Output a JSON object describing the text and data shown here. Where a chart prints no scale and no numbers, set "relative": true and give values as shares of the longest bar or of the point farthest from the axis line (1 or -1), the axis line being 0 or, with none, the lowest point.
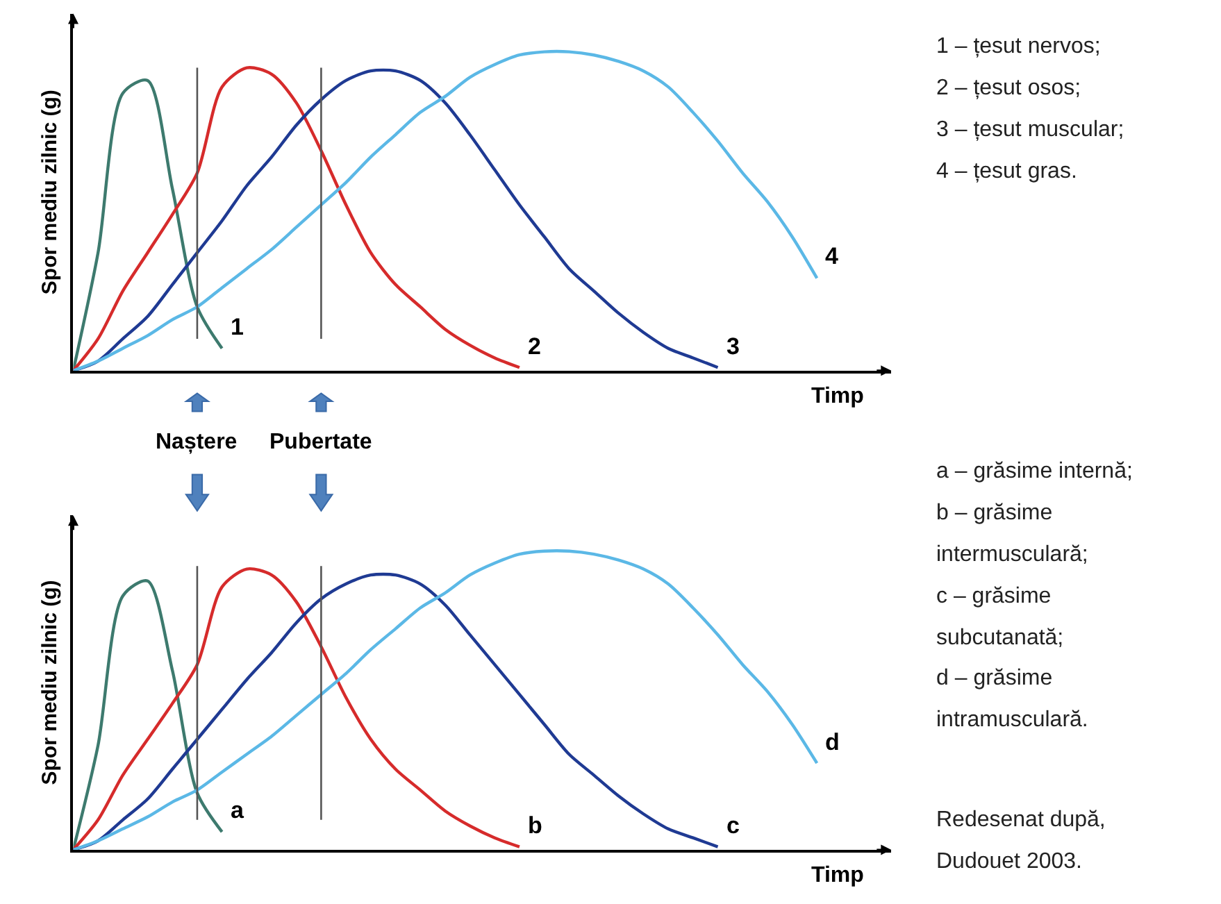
{
  "chart_data": [
    {
      "type": "line",
      "relative": true,
      "ylabel": "Spor mediu zilnic (g)",
      "xlabel": "Timp",
      "legend": false,
      "marker": "none",
      "line_style": "solid",
      "categories": [
        null,
        null,
        null,
        null,
        null,
        null,
        null,
        null,
        null,
        null,
        null,
        null,
        null,
        null,
        null,
        null,
        null,
        null,
        null,
        null,
        null,
        null,
        null,
        null,
        null,
        null,
        null,
        null,
        null,
        null,
        null
      ],
      "series": [
        {
          "name": "1",
          "color": "#3d7a6e",
          "values": [
            0,
            0.37,
            0.87,
            0.91,
            0.57,
            0.2,
            0.07,
            null,
            null,
            null,
            null,
            null,
            null,
            null,
            null,
            null,
            null,
            null,
            null,
            null,
            null,
            null,
            null,
            null,
            null,
            null,
            null,
            null,
            null,
            null,
            null
          ]
        },
        {
          "name": "2",
          "color": "#d62b2b",
          "values": [
            0,
            0.1,
            0.25,
            0.37,
            0.49,
            0.62,
            0.89,
            0.95,
            0.93,
            0.84,
            0.69,
            0.52,
            0.37,
            0.27,
            0.2,
            0.13,
            0.08,
            0.04,
            0.01,
            null,
            null,
            null,
            null,
            null,
            null,
            null,
            null,
            null,
            null,
            null,
            null
          ]
        },
        {
          "name": "3",
          "color": "#1f3a93",
          "values": [
            0,
            0.03,
            0.1,
            0.17,
            0.27,
            0.37,
            0.47,
            0.58,
            0.67,
            0.77,
            0.85,
            0.91,
            0.94,
            0.94,
            0.91,
            0.84,
            0.74,
            0.63,
            0.52,
            0.42,
            0.32,
            0.25,
            0.18,
            0.12,
            0.07,
            0.04,
            0.01,
            null,
            null,
            null,
            null
          ]
        },
        {
          "name": "4",
          "color": "#5bb8e6",
          "values": [
            0,
            0.03,
            0.07,
            0.11,
            0.16,
            0.2,
            0.26,
            0.32,
            0.38,
            0.45,
            0.52,
            0.59,
            0.67,
            0.74,
            0.81,
            0.86,
            0.92,
            0.96,
            0.99,
            1,
            1,
            0.99,
            0.97,
            0.94,
            0.89,
            0.81,
            0.72,
            0.62,
            0.53,
            0.42,
            0.29
          ]
        }
      ],
      "annotations": [
        "Naștere",
        "Pubertate",
        "1 – țesut nervos;",
        "2 – țesut osos;",
        "3 – țesut muscular;",
        "4 – țesut gras."
      ]
    },
    {
      "type": "line",
      "relative": true,
      "ylabel": "Spor mediu zilnic (g)",
      "xlabel": "Timp",
      "legend": false,
      "marker": "none",
      "line_style": "solid",
      "categories": [
        null,
        null,
        null,
        null,
        null,
        null,
        null,
        null,
        null,
        null,
        null,
        null,
        null,
        null,
        null,
        null,
        null,
        null,
        null,
        null,
        null,
        null,
        null,
        null,
        null,
        null,
        null,
        null,
        null,
        null,
        null
      ],
      "series": [
        {
          "name": "a",
          "color": "#3d7a6e",
          "values": [
            0,
            0.35,
            0.85,
            0.9,
            0.6,
            0.19,
            0.06,
            null,
            null,
            null,
            null,
            null,
            null,
            null,
            null,
            null,
            null,
            null,
            null,
            null,
            null,
            null,
            null,
            null,
            null,
            null,
            null,
            null,
            null,
            null,
            null
          ]
        },
        {
          "name": "b",
          "color": "#d62b2b",
          "values": [
            0,
            0.1,
            0.25,
            0.37,
            0.49,
            0.62,
            0.88,
            0.94,
            0.92,
            0.83,
            0.68,
            0.51,
            0.37,
            0.27,
            0.2,
            0.13,
            0.08,
            0.04,
            0.01,
            null,
            null,
            null,
            null,
            null,
            null,
            null,
            null,
            null,
            null,
            null,
            null
          ]
        },
        {
          "name": "c",
          "color": "#1f3a93",
          "values": [
            0,
            0.03,
            0.1,
            0.17,
            0.27,
            0.37,
            0.47,
            0.57,
            0.66,
            0.76,
            0.84,
            0.89,
            0.92,
            0.92,
            0.89,
            0.82,
            0.72,
            0.62,
            0.52,
            0.42,
            0.32,
            0.25,
            0.18,
            0.12,
            0.07,
            0.04,
            0.01,
            null,
            null,
            null,
            null
          ]
        },
        {
          "name": "d",
          "color": "#5bb8e6",
          "values": [
            0,
            0.03,
            0.07,
            0.11,
            0.16,
            0.2,
            0.26,
            0.32,
            0.38,
            0.45,
            0.52,
            0.59,
            0.67,
            0.74,
            0.81,
            0.86,
            0.92,
            0.96,
            0.99,
            1,
            1,
            0.99,
            0.97,
            0.94,
            0.89,
            0.81,
            0.72,
            0.62,
            0.53,
            0.42,
            0.29
          ]
        }
      ],
      "annotations": [
        "a – grăsime internă;",
        "b – grăsime intermusculară;",
        "c – grăsime subcutanată;",
        "d – grăsime intramusculară.",
        "Redesenat după, Dudouet 2003."
      ]
    }
  ]
}
